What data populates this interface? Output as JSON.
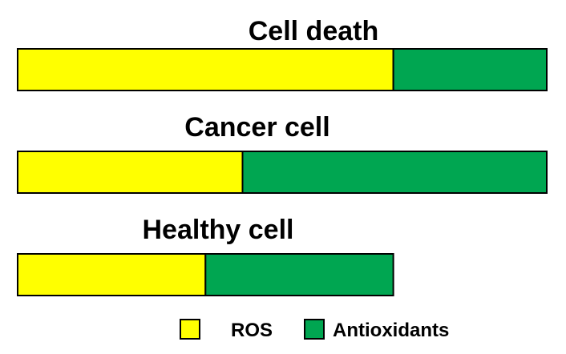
{
  "colors": {
    "ros": "#ffff00",
    "antioxidants": "#00a651",
    "outline": "#000000"
  },
  "chart_data": {
    "type": "bar",
    "stacked": true,
    "orientation": "horizontal",
    "categories": [
      "Cell death",
      "Cancer cell",
      "Healthy cell"
    ],
    "series": [
      {
        "name": "ROS",
        "values": [
          71,
          42.5,
          35.5
        ]
      },
      {
        "name": "Antioxidants",
        "values": [
          29,
          57.5,
          35.5
        ]
      }
    ],
    "title": "",
    "xlabel": "",
    "ylabel": "",
    "xlim": [
      0,
      100
    ],
    "grid": false,
    "legend_position": "bottom"
  },
  "legend": {
    "ros_label": "ROS",
    "antioxidants_label": "Antioxidants"
  }
}
